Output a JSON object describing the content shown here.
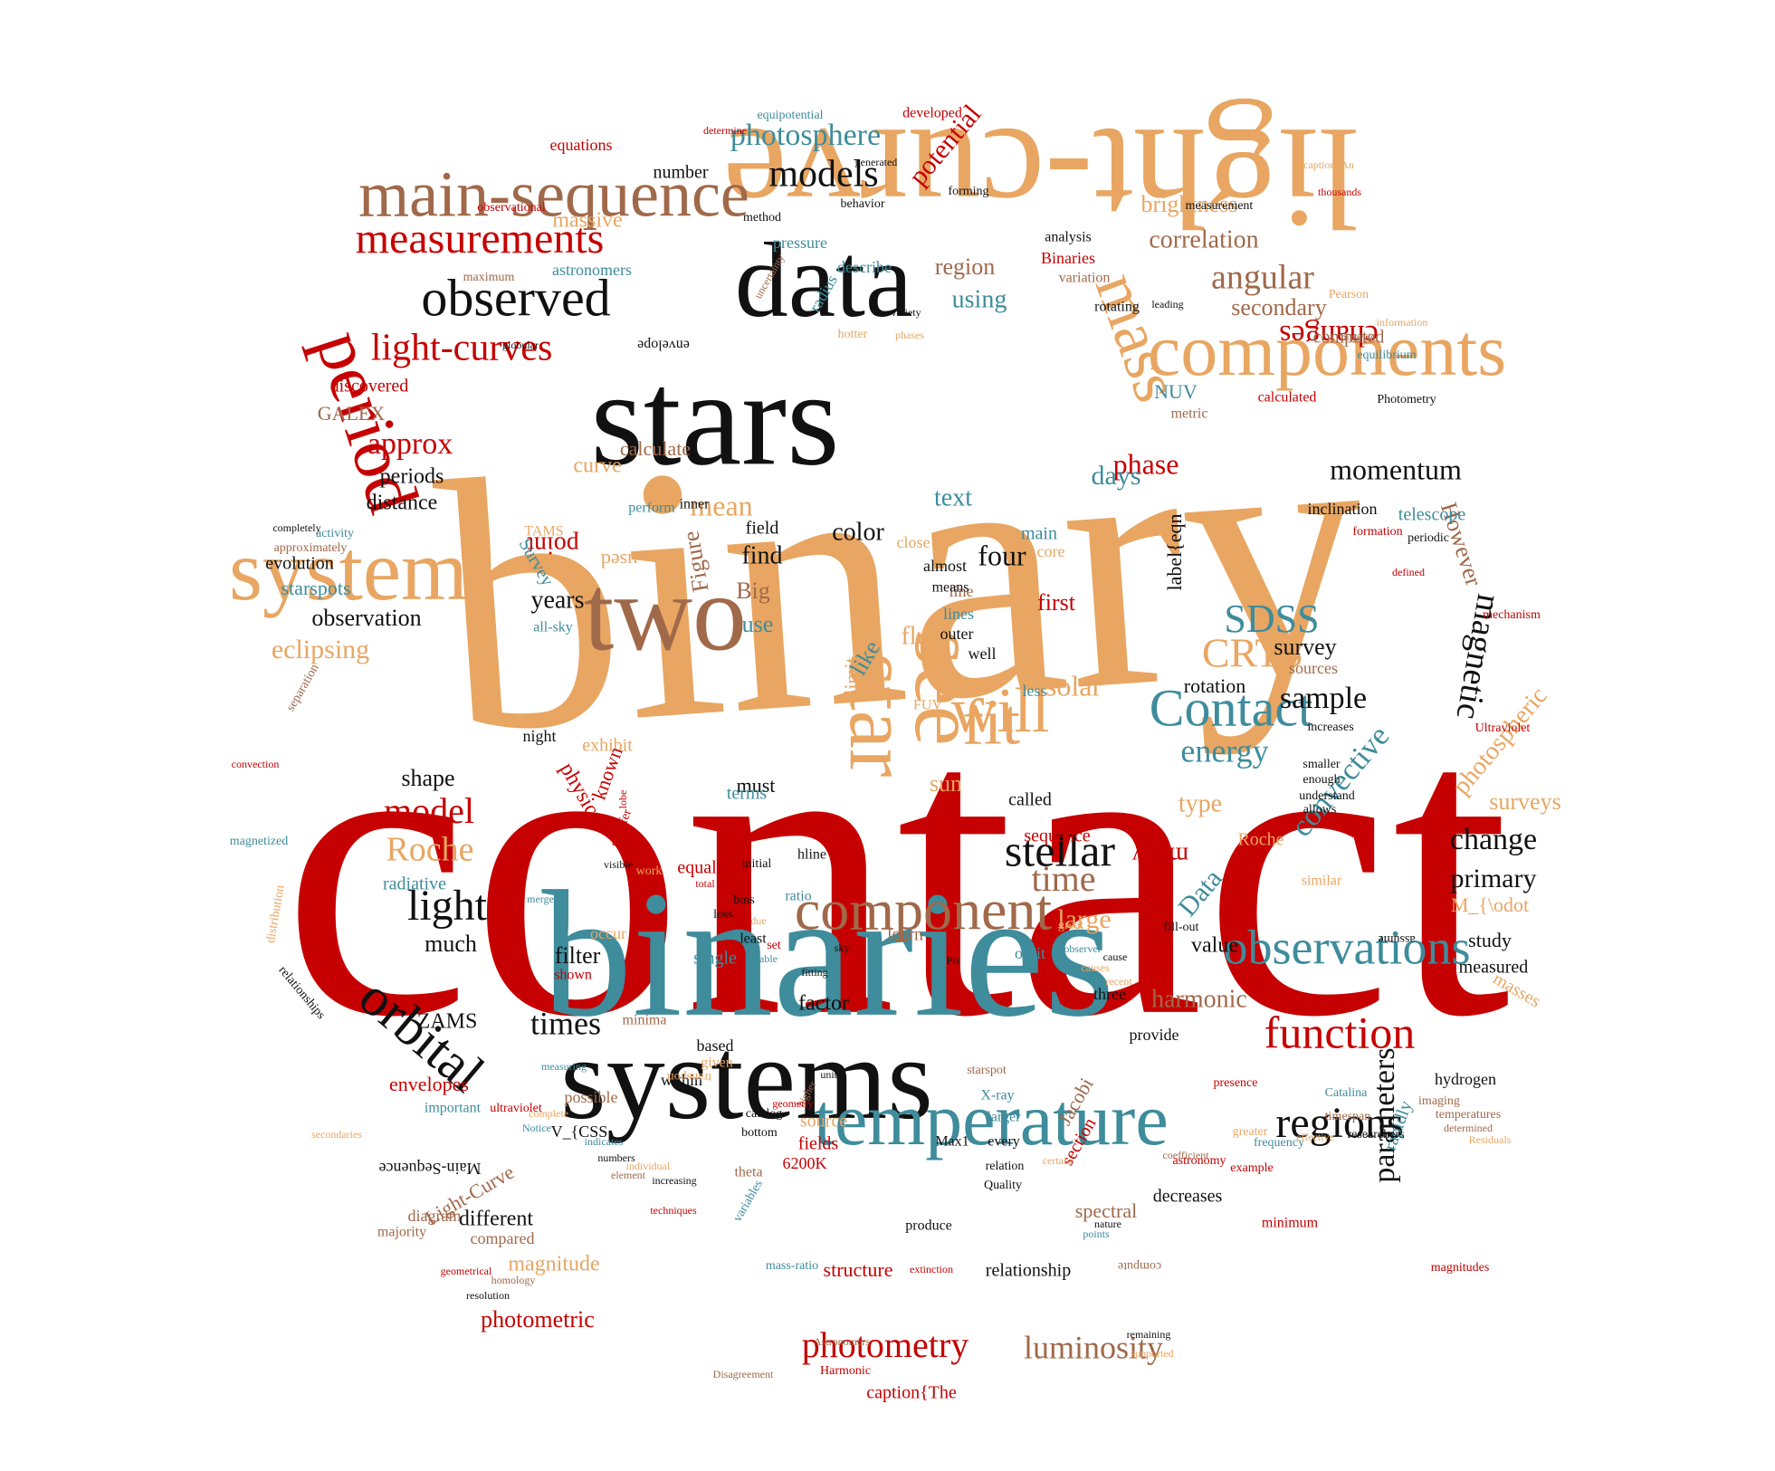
{
  "palette": {
    "red": "#c60000",
    "orange": "#e8a662",
    "black": "#111111",
    "teal": "#3e8c9c",
    "brown": "#a0694a"
  },
  "words": [
    {
      "text": "contact",
      "color": "red"
    },
    {
      "text": "binary",
      "color": "orange"
    },
    {
      "text": "binaries",
      "color": "teal"
    },
    {
      "text": "stars",
      "color": "black"
    },
    {
      "text": "systems",
      "color": "black"
    },
    {
      "text": "light-curve",
      "color": "orange"
    },
    {
      "text": "data",
      "color": "black"
    },
    {
      "text": "two",
      "color": "brown"
    },
    {
      "text": "system",
      "color": "orange"
    },
    {
      "text": "components",
      "color": "orange"
    },
    {
      "text": "temperature",
      "color": "teal"
    },
    {
      "text": "main-sequence",
      "color": "brown"
    },
    {
      "text": "period",
      "color": "red"
    },
    {
      "text": "star",
      "color": "orange"
    },
    {
      "text": "see",
      "color": "orange"
    },
    {
      "text": "observed",
      "color": "black"
    },
    {
      "text": "measurements",
      "color": "red"
    },
    {
      "text": "component",
      "color": "brown"
    },
    {
      "text": "observations",
      "color": "teal"
    },
    {
      "text": "Contact",
      "color": "teal"
    },
    {
      "text": "orbital",
      "color": "black"
    },
    {
      "text": "will",
      "color": "orange"
    },
    {
      "text": "mass",
      "color": "orange"
    },
    {
      "text": "function",
      "color": "red"
    },
    {
      "text": "regions",
      "color": "black"
    },
    {
      "text": "light-curves",
      "color": "red"
    },
    {
      "text": "angular",
      "color": "brown"
    },
    {
      "text": "photosphere",
      "color": "teal"
    },
    {
      "text": "models",
      "color": "black"
    },
    {
      "text": "stellar",
      "color": "black"
    },
    {
      "text": "time",
      "color": "brown"
    },
    {
      "text": "momentum",
      "color": "black"
    },
    {
      "text": "luminosity",
      "color": "brown"
    },
    {
      "text": "photometry",
      "color": "red"
    },
    {
      "text": "light",
      "color": "black"
    },
    {
      "text": "fit",
      "color": "orange"
    },
    {
      "text": "SDSS",
      "color": "teal"
    },
    {
      "text": "CRTS",
      "color": "orange"
    },
    {
      "text": "sample",
      "color": "black"
    },
    {
      "text": "model",
      "color": "red"
    },
    {
      "text": "Roche",
      "color": "orange"
    },
    {
      "text": "energy",
      "color": "teal"
    },
    {
      "text": "approx",
      "color": "red"
    },
    {
      "text": "eclipsing",
      "color": "orange"
    },
    {
      "text": "mean",
      "color": "orange"
    },
    {
      "text": "phase",
      "color": "red"
    },
    {
      "text": "times",
      "color": "black"
    },
    {
      "text": "harmonic",
      "color": "brown"
    },
    {
      "text": "parameters",
      "color": "black"
    },
    {
      "text": "correlation",
      "color": "brown"
    },
    {
      "text": "secondary",
      "color": "brown"
    },
    {
      "text": "changes",
      "color": "red"
    },
    {
      "text": "potential",
      "color": "red"
    },
    {
      "text": "brightness",
      "color": "orange"
    },
    {
      "text": "magnetic",
      "color": "black"
    },
    {
      "text": "However",
      "color": "brown"
    },
    {
      "text": "convective",
      "color": "teal"
    },
    {
      "text": "photospheric",
      "color": "orange"
    },
    {
      "text": "observation",
      "color": "black"
    },
    {
      "text": "periods",
      "color": "black"
    },
    {
      "text": "distance",
      "color": "black"
    },
    {
      "text": "curve",
      "color": "orange"
    },
    {
      "text": "calculate",
      "color": "brown"
    },
    {
      "text": "GALEX",
      "color": "brown"
    },
    {
      "text": "discovered",
      "color": "red"
    },
    {
      "text": "equations",
      "color": "red"
    },
    {
      "text": "number",
      "color": "black"
    },
    {
      "text": "pressure",
      "color": "teal"
    },
    {
      "text": "massive",
      "color": "orange"
    },
    {
      "text": "region",
      "color": "brown"
    },
    {
      "text": "using",
      "color": "teal"
    },
    {
      "text": "astronomers",
      "color": "teal"
    },
    {
      "text": "describe",
      "color": "teal"
    },
    {
      "text": "analysis",
      "color": "black"
    },
    {
      "text": "Binaries",
      "color": "red"
    },
    {
      "text": "variation",
      "color": "brown"
    },
    {
      "text": "rotating",
      "color": "black"
    },
    {
      "text": "computed",
      "color": "brown"
    },
    {
      "text": "equilibrium",
      "color": "teal"
    },
    {
      "text": "calculated",
      "color": "red"
    },
    {
      "text": "Photometry",
      "color": "black"
    },
    {
      "text": "NUV",
      "color": "teal"
    },
    {
      "text": "metric",
      "color": "brown"
    },
    {
      "text": "days",
      "color": "teal"
    },
    {
      "text": "text",
      "color": "teal"
    },
    {
      "text": "four",
      "color": "black"
    },
    {
      "text": "find",
      "color": "black"
    },
    {
      "text": "color",
      "color": "black"
    },
    {
      "text": "Big",
      "color": "brown"
    },
    {
      "text": "use",
      "color": "teal"
    },
    {
      "text": "years",
      "color": "black"
    },
    {
      "text": "field",
      "color": "black"
    },
    {
      "text": "first",
      "color": "red"
    },
    {
      "text": "line",
      "color": "brown"
    },
    {
      "text": "lines",
      "color": "teal"
    },
    {
      "text": "flux",
      "color": "orange"
    },
    {
      "text": "solar",
      "color": "orange"
    },
    {
      "text": "limit",
      "color": "orange"
    },
    {
      "text": "like",
      "color": "teal"
    },
    {
      "text": "survey",
      "color": "black"
    },
    {
      "text": "sources",
      "color": "brown"
    },
    {
      "text": "rotation",
      "color": "black"
    },
    {
      "text": "telescope",
      "color": "teal"
    },
    {
      "text": "inclination",
      "color": "black"
    },
    {
      "text": "starspots",
      "color": "teal"
    },
    {
      "text": "evolution",
      "color": "black"
    },
    {
      "text": "physical",
      "color": "red"
    },
    {
      "text": "shape",
      "color": "black"
    },
    {
      "text": "radiative",
      "color": "teal"
    },
    {
      "text": "much",
      "color": "black"
    },
    {
      "text": "filter",
      "color": "black"
    },
    {
      "text": "type",
      "color": "orange"
    },
    {
      "text": "large",
      "color": "orange"
    },
    {
      "text": "must",
      "color": "black"
    },
    {
      "text": "called",
      "color": "black"
    },
    {
      "text": "sequence",
      "color": "red"
    },
    {
      "text": "Data",
      "color": "teal"
    },
    {
      "text": "value",
      "color": "black"
    },
    {
      "text": "change",
      "color": "black"
    },
    {
      "text": "primary",
      "color": "black"
    },
    {
      "text": "surveys",
      "color": "orange"
    },
    {
      "text": "study",
      "color": "black"
    },
    {
      "text": "measured",
      "color": "black"
    },
    {
      "text": "masses",
      "color": "orange"
    },
    {
      "text": "ZAMS",
      "color": "black"
    },
    {
      "text": "envelopes",
      "color": "red"
    },
    {
      "text": "factor",
      "color": "black"
    },
    {
      "text": "three",
      "color": "black"
    },
    {
      "text": "provide",
      "color": "black"
    },
    {
      "text": "structure",
      "color": "red"
    },
    {
      "text": "relationship",
      "color": "black"
    },
    {
      "text": "magnitude",
      "color": "orange"
    },
    {
      "text": "photometric",
      "color": "red"
    },
    {
      "text": "different",
      "color": "black"
    },
    {
      "text": "compared",
      "color": "brown"
    },
    {
      "text": "caption{The",
      "color": "red"
    },
    {
      "text": "decreases",
      "color": "black"
    },
    {
      "text": "spectral",
      "color": "brown"
    },
    {
      "text": "Jacobi",
      "color": "brown"
    },
    {
      "text": "section",
      "color": "red"
    },
    {
      "text": "hydrogen",
      "color": "black"
    },
    {
      "text": "rapidly",
      "color": "teal"
    },
    {
      "text": "minimum",
      "color": "red"
    },
    {
      "text": "magnitudes",
      "color": "red"
    },
    {
      "text": "V_{CSS",
      "color": "black"
    },
    {
      "text": "6200K",
      "color": "red"
    },
    {
      "text": "fields",
      "color": "red"
    },
    {
      "text": "source",
      "color": "orange"
    },
    {
      "text": "Max1",
      "color": "black"
    },
    {
      "text": "produce",
      "color": "black"
    },
    {
      "text": "Light-Curve",
      "color": "brown"
    },
    {
      "text": "Main-Sequence",
      "color": "black"
    },
    {
      "text": "diagram",
      "color": "brown"
    },
    {
      "text": "majority",
      "color": "brown"
    },
    {
      "text": "possible",
      "color": "brown"
    },
    {
      "text": "important",
      "color": "teal"
    },
    {
      "text": "based",
      "color": "black"
    },
    {
      "text": "within",
      "color": "black"
    },
    {
      "text": "given",
      "color": "orange"
    },
    {
      "text": "minima",
      "color": "brown"
    },
    {
      "text": "shown",
      "color": "red"
    },
    {
      "text": "occur",
      "color": "orange"
    },
    {
      "text": "single",
      "color": "teal"
    },
    {
      "text": "equal",
      "color": "red"
    },
    {
      "text": "least",
      "color": "black"
    },
    {
      "text": "learn",
      "color": "brown"
    },
    {
      "text": "orbit",
      "color": "teal"
    },
    {
      "text": "sun",
      "color": "orange"
    },
    {
      "text": "terms",
      "color": "teal"
    },
    {
      "text": "many",
      "color": "red"
    },
    {
      "text": "fill-out",
      "color": "black"
    },
    {
      "text": "exhibit",
      "color": "orange"
    },
    {
      "text": "night",
      "color": "black"
    },
    {
      "text": "known",
      "color": "red"
    },
    {
      "text": "Roche",
      "color": "orange"
    },
    {
      "text": "Figure",
      "color": "brown"
    },
    {
      "text": "point",
      "color": "red"
    },
    {
      "text": "used",
      "color": "orange"
    },
    {
      "text": "M_{\\odot",
      "color": "orange"
    },
    {
      "text": "label{eqn",
      "color": "black"
    },
    {
      "text": "FUV",
      "color": "orange"
    },
    {
      "text": "developed",
      "color": "red"
    },
    {
      "text": "equipotential",
      "color": "teal"
    },
    {
      "text": "observational",
      "color": "red"
    },
    {
      "text": "maximum",
      "color": "brown"
    },
    {
      "text": "activity",
      "color": "teal"
    },
    {
      "text": "approximately",
      "color": "brown"
    },
    {
      "text": "completely",
      "color": "black"
    },
    {
      "text": "all-sky",
      "color": "teal"
    },
    {
      "text": "TAMS",
      "color": "orange"
    },
    {
      "text": "Survey",
      "color": "teal"
    },
    {
      "text": "perform",
      "color": "teal"
    },
    {
      "text": "inner",
      "color": "black"
    },
    {
      "text": "main",
      "color": "teal"
    },
    {
      "text": "core",
      "color": "orange"
    },
    {
      "text": "close",
      "color": "orange"
    },
    {
      "text": "almost",
      "color": "black"
    },
    {
      "text": "means",
      "color": "black"
    },
    {
      "text": "outer",
      "color": "black"
    },
    {
      "text": "well",
      "color": "black"
    },
    {
      "text": "less",
      "color": "teal"
    },
    {
      "text": "formation",
      "color": "red"
    },
    {
      "text": "periodic",
      "color": "black"
    },
    {
      "text": "defined",
      "color": "red"
    },
    {
      "text": "mechanism",
      "color": "red"
    },
    {
      "text": "Ultraviolet",
      "color": "red"
    },
    {
      "text": "increases",
      "color": "black"
    },
    {
      "text": "understand",
      "color": "black"
    },
    {
      "text": "smaller",
      "color": "black"
    },
    {
      "text": "enough",
      "color": "black"
    },
    {
      "text": "allows",
      "color": "black"
    },
    {
      "text": "similar",
      "color": "orange"
    },
    {
      "text": "assume",
      "color": "black"
    },
    {
      "text": "imaging",
      "color": "brown"
    },
    {
      "text": "temperatures",
      "color": "brown"
    },
    {
      "text": "determined",
      "color": "brown"
    },
    {
      "text": "Residuals",
      "color": "orange"
    },
    {
      "text": "researchers",
      "color": "black"
    },
    {
      "text": "timespan",
      "color": "brown"
    },
    {
      "text": "Catalina",
      "color": "teal"
    },
    {
      "text": "coefficient",
      "color": "brown"
    },
    {
      "text": "astronomy",
      "color": "red"
    },
    {
      "text": "example",
      "color": "red"
    },
    {
      "text": "frequency",
      "color": "teal"
    },
    {
      "text": "compute",
      "color": "brown"
    },
    {
      "text": "extinction",
      "color": "red"
    },
    {
      "text": "mass-ratio",
      "color": "teal"
    },
    {
      "text": "Harmonic",
      "color": "red"
    },
    {
      "text": "Disagreement",
      "color": "brown"
    },
    {
      "text": "Astronomers",
      "color": "brown"
    },
    {
      "text": "remaining",
      "color": "black"
    },
    {
      "text": "supported",
      "color": "orange"
    },
    {
      "text": "resolution",
      "color": "black"
    },
    {
      "text": "homology",
      "color": "brown"
    },
    {
      "text": "geometrical",
      "color": "red"
    },
    {
      "text": "ultraviolet",
      "color": "red"
    },
    {
      "text": "secondaries",
      "color": "orange"
    },
    {
      "text": "relationships",
      "color": "black"
    },
    {
      "text": "distribution",
      "color": "orange"
    },
    {
      "text": "magnetized",
      "color": "teal"
    },
    {
      "text": "convection",
      "color": "red"
    },
    {
      "text": "separation",
      "color": "brown"
    },
    {
      "text": "X-ray",
      "color": "teal"
    },
    {
      "text": "larger",
      "color": "teal"
    },
    {
      "text": "every",
      "color": "black"
    },
    {
      "text": "relation",
      "color": "black"
    },
    {
      "text": "Quality",
      "color": "black"
    },
    {
      "text": "catalog",
      "color": "black"
    },
    {
      "text": "bottom",
      "color": "black"
    },
    {
      "text": "theta",
      "color": "brown"
    },
    {
      "text": "greater",
      "color": "orange"
    },
    {
      "text": "presence",
      "color": "red"
    },
    {
      "text": "effective",
      "color": "orange"
    },
    {
      "text": "uncertainty",
      "color": "brown"
    },
    {
      "text": "radius",
      "color": "teal"
    },
    {
      "text": "hotter",
      "color": "orange"
    },
    {
      "text": "phases",
      "color": "orange"
    },
    {
      "text": "globular",
      "color": "black"
    },
    {
      "text": "measurement",
      "color": "black"
    },
    {
      "text": "thousands",
      "color": "red"
    },
    {
      "text": "Pearson",
      "color": "orange"
    },
    {
      "text": "binary's",
      "color": "brown"
    },
    {
      "text": "information",
      "color": "orange"
    },
    {
      "text": "method",
      "color": "black"
    },
    {
      "text": "behavior",
      "color": "black"
    },
    {
      "text": "variety",
      "color": "black"
    },
    {
      "text": "leading",
      "color": "black"
    },
    {
      "text": "envelope",
      "color": "black"
    },
    {
      "text": "determine",
      "color": "red"
    },
    {
      "text": "generated",
      "color": "black"
    },
    {
      "text": "forming",
      "color": "black"
    },
    {
      "text": "caption{An",
      "color": "orange"
    },
    {
      "text": "hline",
      "color": "black"
    },
    {
      "text": "ratio",
      "color": "teal"
    },
    {
      "text": "initial",
      "color": "black"
    },
    {
      "text": "bins",
      "color": "black"
    },
    {
      "text": "visible",
      "color": "black"
    },
    {
      "text": "work",
      "color": "orange"
    },
    {
      "text": "transfer",
      "color": "red"
    },
    {
      "text": "lobe",
      "color": "red"
    },
    {
      "text": "merger",
      "color": "teal"
    },
    {
      "text": "total",
      "color": "red"
    },
    {
      "text": "loss",
      "color": "black"
    },
    {
      "text": "due",
      "color": "orange"
    },
    {
      "text": "set",
      "color": "red"
    },
    {
      "text": "stable",
      "color": "teal"
    },
    {
      "text": "sky",
      "color": "black"
    },
    {
      "text": "fitting",
      "color": "black"
    },
    {
      "text": "Psi",
      "color": "black"
    },
    {
      "text": "great",
      "color": "orange"
    },
    {
      "text": "observer",
      "color": "teal"
    },
    {
      "text": "cause",
      "color": "black"
    },
    {
      "text": "causes",
      "color": "orange"
    },
    {
      "text": "recent",
      "color": "orange"
    },
    {
      "text": "measuring",
      "color": "teal"
    },
    {
      "text": "complete",
      "color": "orange"
    },
    {
      "text": "Notice",
      "color": "teal"
    },
    {
      "text": "indicates",
      "color": "teal"
    },
    {
      "text": "numbers",
      "color": "black"
    },
    {
      "text": "individual",
      "color": "orange"
    },
    {
      "text": "element",
      "color": "brown"
    },
    {
      "text": "increasing",
      "color": "black"
    },
    {
      "text": "techniques",
      "color": "red"
    },
    {
      "text": "variables",
      "color": "teal"
    },
    {
      "text": "transport",
      "color": "orange"
    },
    {
      "text": "higher",
      "color": "brown"
    },
    {
      "text": "geometry",
      "color": "red"
    },
    {
      "text": "units",
      "color": "black"
    },
    {
      "text": "starspot",
      "color": "brown"
    },
    {
      "text": "certain",
      "color": "orange"
    },
    {
      "text": "nature",
      "color": "black"
    },
    {
      "text": "points",
      "color": "teal"
    },
    {
      "text": "images",
      "color": "orange"
    },
    {
      "text": "remain",
      "color": "red"
    },
    {
      "text": "detached",
      "color": "red"
    }
  ]
}
